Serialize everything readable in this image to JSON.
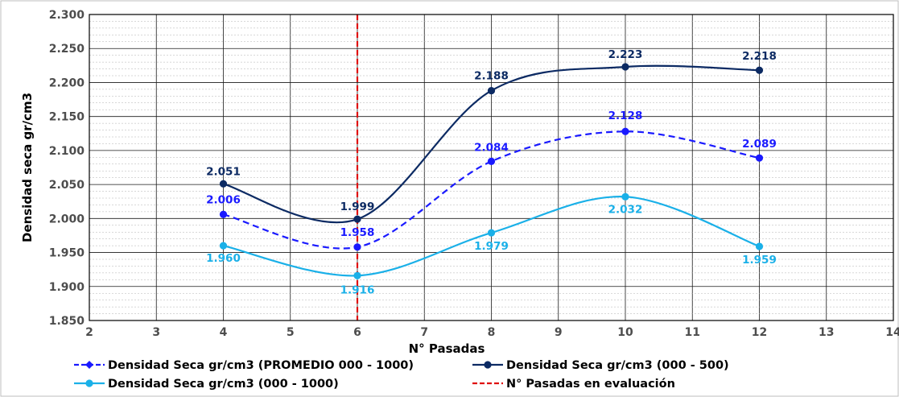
{
  "chart_data": {
    "type": "line",
    "xlabel": "N° Pasadas",
    "ylabel": "Densidad seca gr/cm3",
    "xlim": [
      2,
      14
    ],
    "ylim": [
      1.85,
      2.3
    ],
    "xticks": [
      "2",
      "3",
      "4",
      "5",
      "6",
      "7",
      "8",
      "9",
      "10",
      "11",
      "12",
      "13",
      "14"
    ],
    "yticks": [
      "1.850",
      "1.900",
      "1.950",
      "2.000",
      "2.050",
      "2.100",
      "2.150",
      "2.200",
      "2.250",
      "2.300"
    ],
    "grid": true,
    "legend_position": "bottom",
    "series": [
      {
        "name": "Densidad Seca gr/cm3 (PROMEDIO 000 - 1000)",
        "color": "#1a1aff",
        "style": "dashed",
        "x": [
          4,
          6,
          8,
          10,
          12
        ],
        "values": [
          2.006,
          1.958,
          2.084,
          2.128,
          2.089
        ],
        "labels": [
          "2.006",
          "1.958",
          "2.084",
          "2.128",
          "2.089"
        ]
      },
      {
        "name": "Densidad Seca gr/cm3 (000 - 500)",
        "color": "#0c2a63",
        "style": "solid",
        "x": [
          4,
          6,
          8,
          10,
          12
        ],
        "values": [
          2.051,
          1.999,
          2.188,
          2.223,
          2.218
        ],
        "labels": [
          "2.051",
          "1.999",
          "2.188",
          "2.223",
          "2.218"
        ]
      },
      {
        "name": "Densidad Seca gr/cm3 (000 - 1000)",
        "color": "#1ab0e8",
        "style": "solid",
        "x": [
          4,
          6,
          8,
          10,
          12
        ],
        "values": [
          1.96,
          1.916,
          1.979,
          2.032,
          1.959
        ],
        "labels": [
          "1.960",
          "1.916",
          "1.979",
          "2.032",
          "1.959"
        ]
      }
    ],
    "reference_line": {
      "name": "N° Pasadas en evaluación",
      "x": 6,
      "color": "#e01010",
      "style": "dashed"
    }
  }
}
